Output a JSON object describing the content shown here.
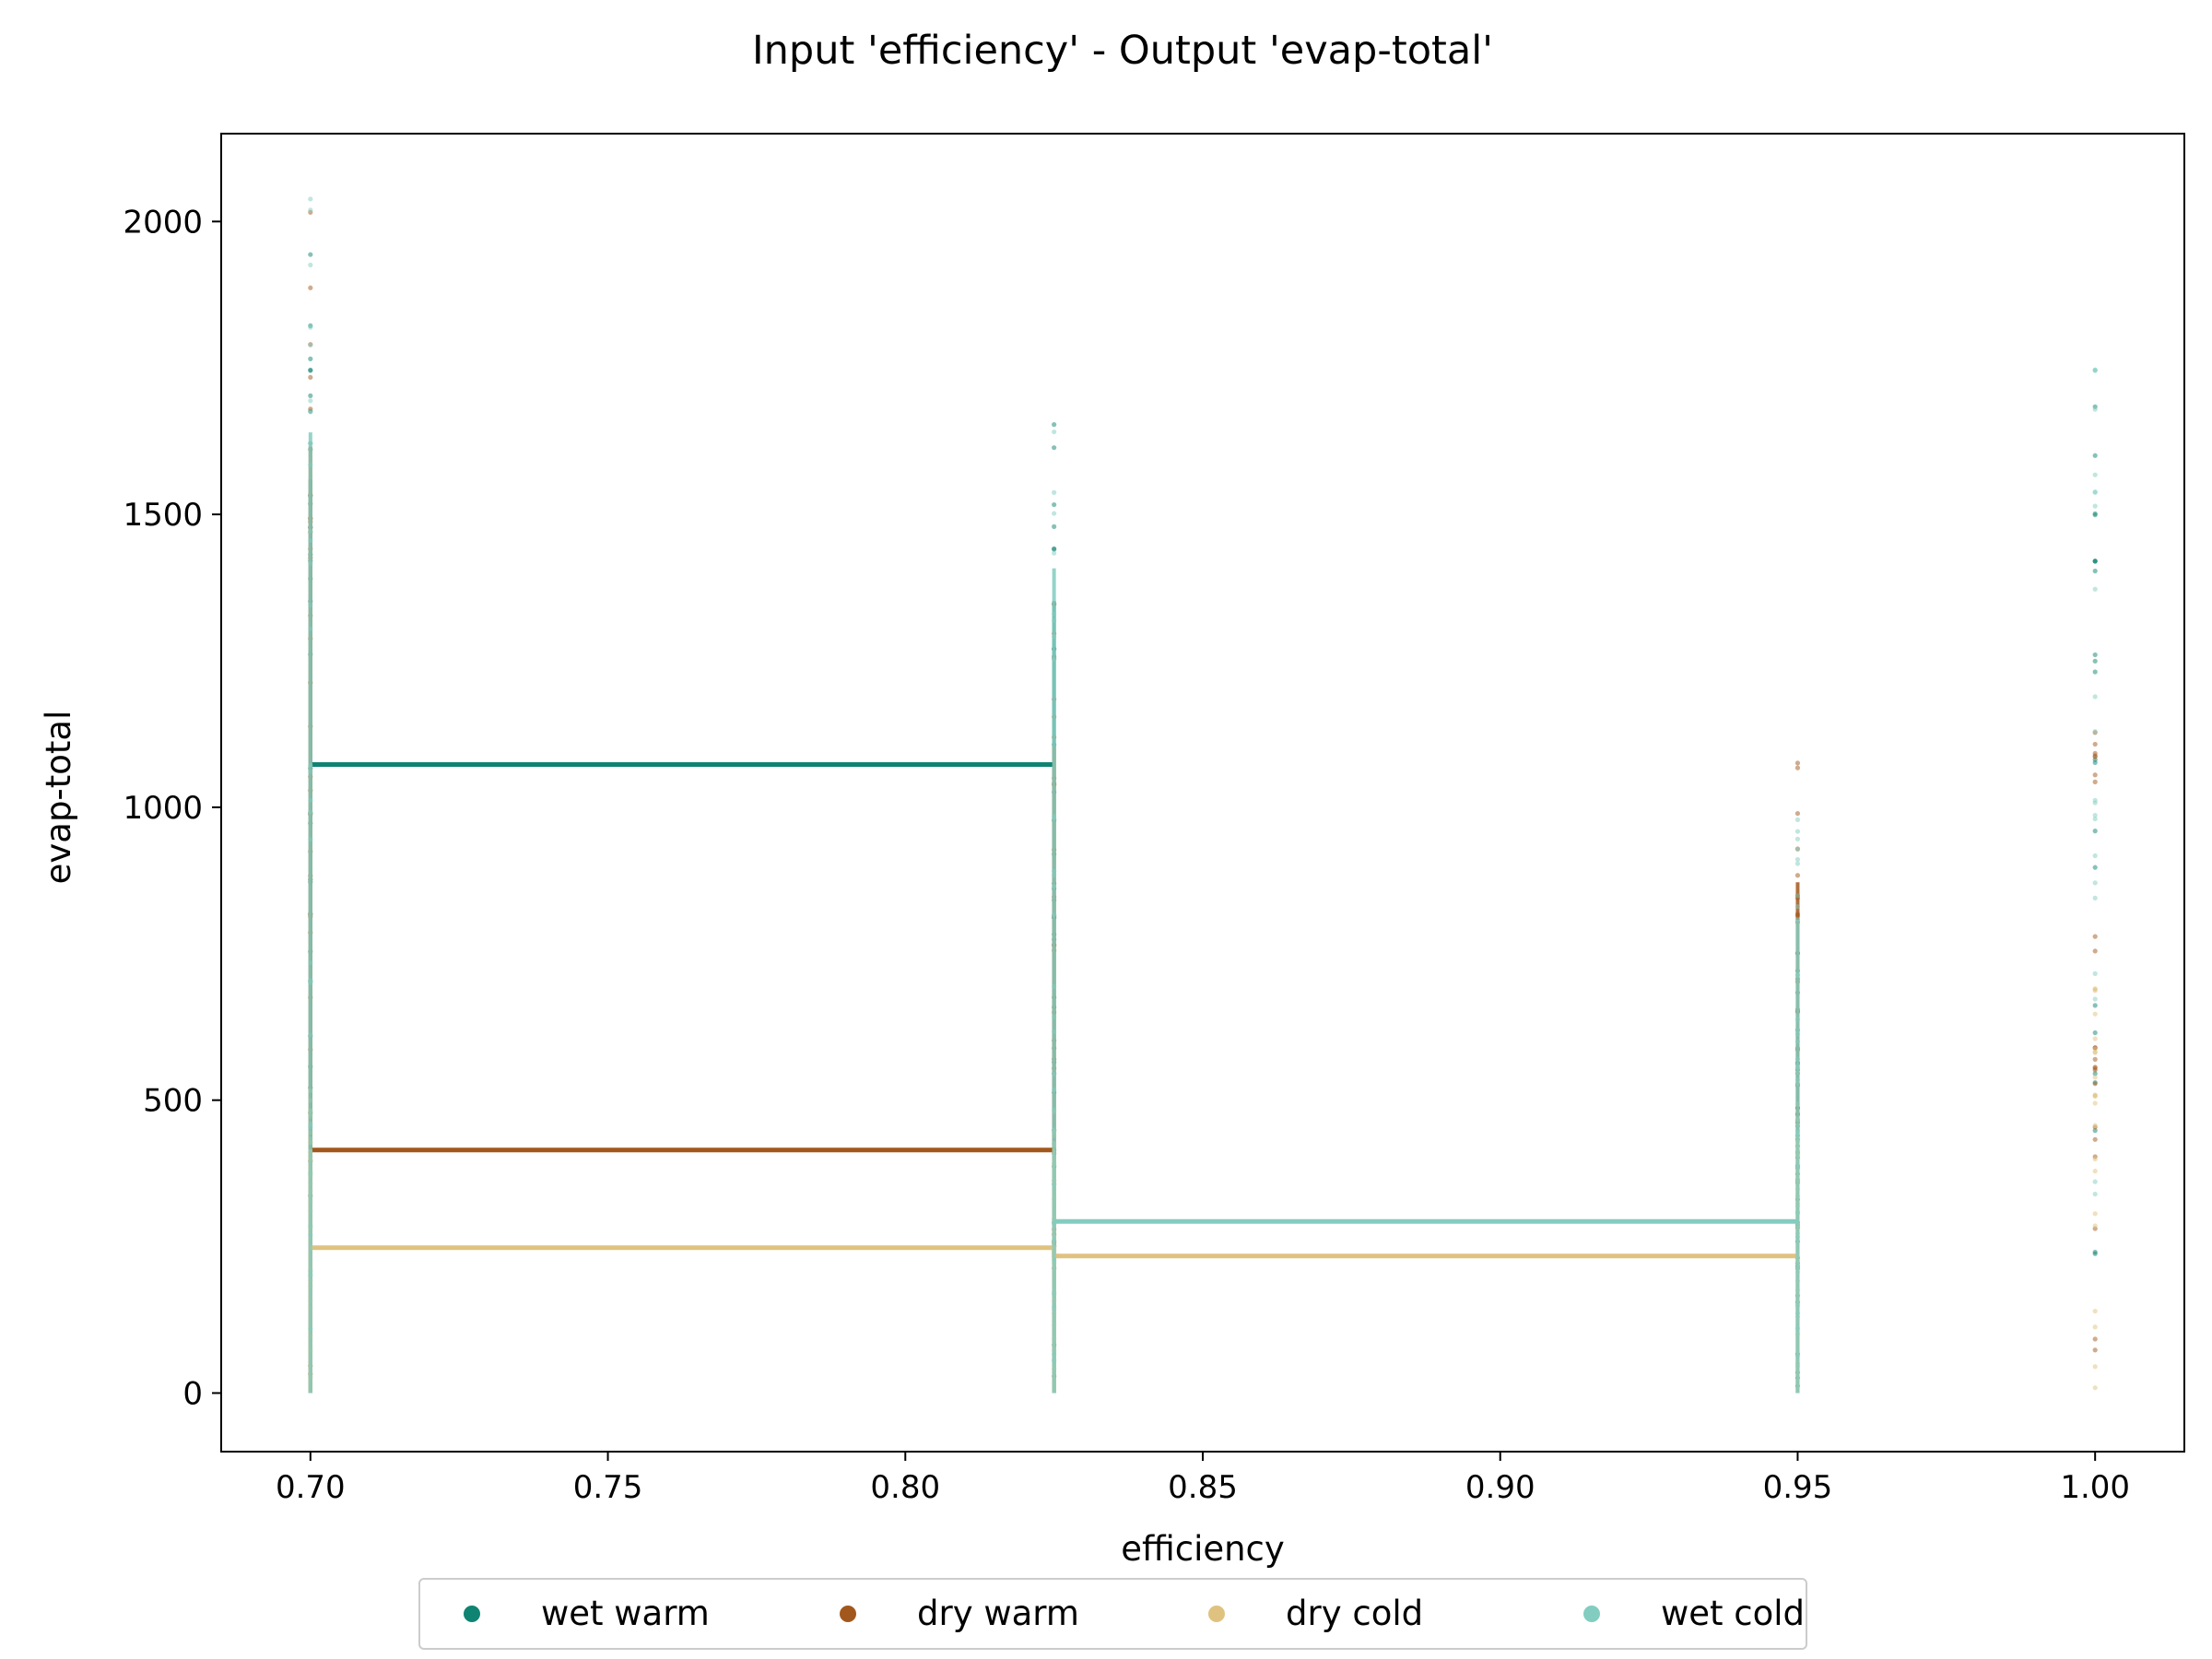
{
  "chart_data": {
    "type": "scatter",
    "title": "Input 'efficiency' - Output 'evap-total'",
    "xlabel": "efficiency",
    "ylabel": "evap-total",
    "xlim": [
      0.685,
      1.015
    ],
    "ylim": [
      -100,
      2150
    ],
    "x_ticks": [
      "0.70",
      "0.75",
      "0.80",
      "0.85",
      "0.90",
      "0.95",
      "1.00"
    ],
    "y_ticks": [
      "0",
      "500",
      "1000",
      "1500",
      "2000"
    ],
    "x_levels": [
      0.7,
      0.825,
      0.95,
      1.0
    ],
    "grid": false,
    "legend_position": "bottom-center",
    "series": [
      {
        "name": "wet warm",
        "color": "#0f8472",
        "mean_line": [
          [
            0.7,
            1073
          ],
          [
            0.825,
            1073
          ]
        ],
        "point_ranges": [
          [
            0.7,
            0,
            1950
          ],
          [
            0.825,
            0,
            1690
          ],
          [
            0.95,
            0,
            780
          ],
          [
            1.0,
            0,
            1690
          ]
        ]
      },
      {
        "name": "dry warm",
        "color": "#a2581c",
        "mean_line": [
          [
            0.7,
            415
          ],
          [
            0.825,
            415
          ]
        ],
        "point_ranges": [
          [
            0.7,
            0,
            2020
          ],
          [
            0.825,
            0,
            1380
          ],
          [
            0.95,
            0,
            1090
          ],
          [
            1.0,
            0,
            1150
          ]
        ]
      },
      {
        "name": "dry cold",
        "color": "#e0c280",
        "mean_line": [
          [
            0.7,
            248
          ],
          [
            0.825,
            248
          ],
          [
            0.825,
            234
          ],
          [
            0.95,
            234
          ]
        ],
        "point_ranges": [
          [
            0.7,
            0,
            520
          ],
          [
            0.825,
            0,
            520
          ],
          [
            0.95,
            0,
            560
          ],
          [
            1.0,
            0,
            700
          ]
        ]
      },
      {
        "name": "wet cold",
        "color": "#82cdc0",
        "mean_line": [
          [
            0.825,
            293
          ],
          [
            0.95,
            293
          ]
        ],
        "point_ranges": [
          [
            0.7,
            0,
            2050
          ],
          [
            0.825,
            0,
            1760
          ],
          [
            0.95,
            0,
            1010
          ],
          [
            1.0,
            0,
            1800
          ]
        ]
      }
    ]
  }
}
